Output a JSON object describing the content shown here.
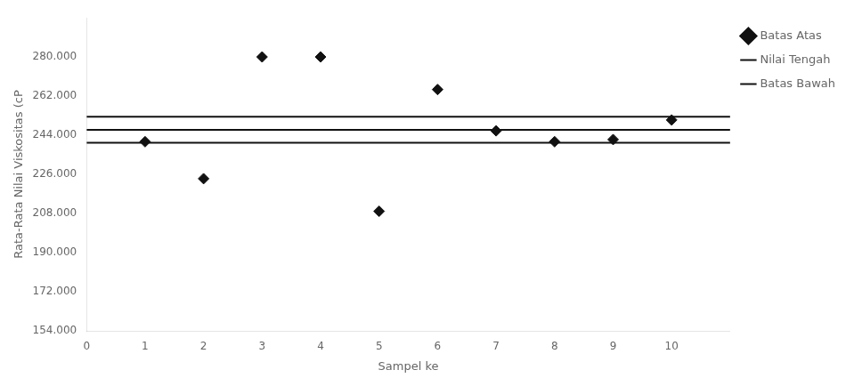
{
  "chart_data": {
    "type": "scatter",
    "xlabel": "Sampel ke",
    "ylabel": "Rata-Rata Nilai Viskositas (cP",
    "xlim": [
      0,
      11
    ],
    "xticks": [
      0,
      1,
      2,
      3,
      4,
      5,
      6,
      7,
      8,
      9,
      10
    ],
    "ylim": [
      154000,
      298000
    ],
    "yticks": [
      {
        "value": 154000,
        "label": "154.000"
      },
      {
        "value": 172000,
        "label": "172.000"
      },
      {
        "value": 190000,
        "label": "190.000"
      },
      {
        "value": 208000,
        "label": "208.000"
      },
      {
        "value": 226000,
        "label": "226.000"
      },
      {
        "value": 244000,
        "label": "244.000"
      },
      {
        "value": 262000,
        "label": "262.000"
      },
      {
        "value": 280000,
        "label": "280.000"
      }
    ],
    "grid": false,
    "legend": "right",
    "series": [
      {
        "type": "scatter",
        "marker": "diamond",
        "color": "#111111",
        "x": [
          1,
          2,
          3,
          4,
          5,
          6,
          7,
          8,
          9,
          10
        ],
        "values": [
          241000,
          224000,
          280000,
          280000,
          209000,
          265000,
          246000,
          241000,
          242000,
          251000
        ]
      },
      {
        "name": "Batas Atas",
        "type": "hline",
        "marker": "diamond",
        "color": "#111111",
        "y": 252500
      },
      {
        "name": "Nilai Tengah",
        "type": "hline",
        "color": "#111111",
        "y": 246500
      },
      {
        "name": "Batas Bawah",
        "type": "hline",
        "color": "#111111",
        "y": 240500
      }
    ]
  }
}
